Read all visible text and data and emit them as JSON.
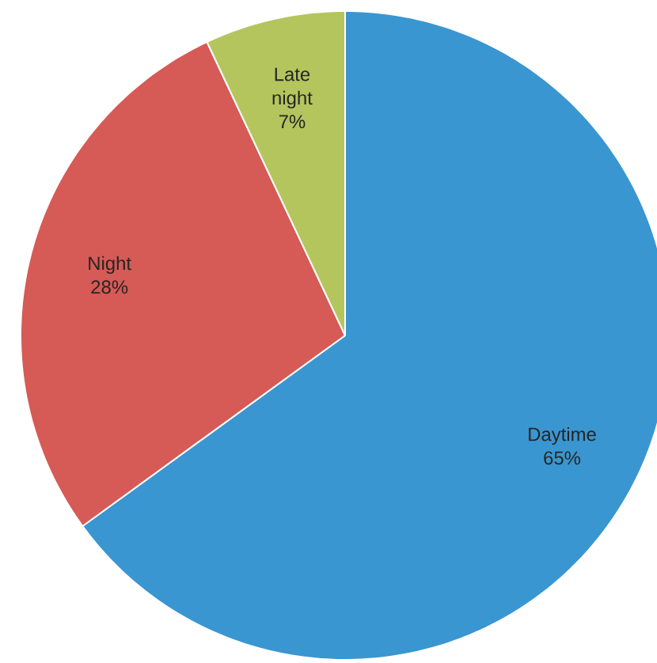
{
  "chart_data": {
    "type": "pie",
    "categories": [
      "Daytime",
      "Night",
      "Late night"
    ],
    "values": [
      65,
      28,
      7
    ],
    "value_labels": [
      "65%",
      "28%",
      "7%"
    ],
    "colors": [
      "#3a96d0",
      "#d65a55",
      "#b5c55e"
    ]
  }
}
